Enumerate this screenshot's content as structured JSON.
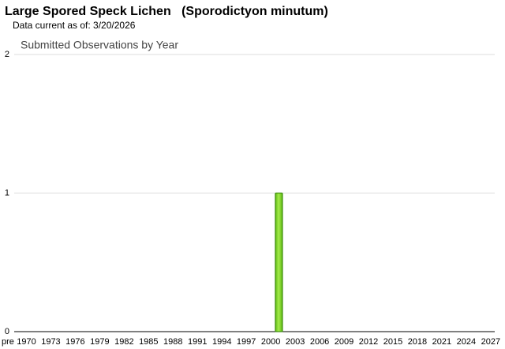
{
  "page_title": "Large Spored Speck Lichen   (Sporodictyon minutum)",
  "data_note": "Data current as of: 3/20/2026",
  "chart_data": {
    "type": "bar",
    "title": "Submitted Observations by Year",
    "categories": [
      "pre",
      "1970",
      null,
      null,
      "1973",
      null,
      null,
      "1976",
      null,
      null,
      "1979",
      null,
      null,
      "1982",
      null,
      null,
      "1985",
      null,
      null,
      "1988",
      null,
      null,
      "1991",
      null,
      null,
      "1994",
      null,
      null,
      "1997",
      null,
      null,
      "2000",
      null,
      null,
      "2003",
      null,
      null,
      "2006",
      null,
      null,
      "2009",
      null,
      null,
      "2012",
      null,
      null,
      "2015",
      null,
      null,
      "2018",
      null,
      null,
      "2021",
      null,
      null,
      "2024",
      null,
      null,
      "2027"
    ],
    "values": [
      0,
      0,
      0,
      0,
      0,
      0,
      0,
      0,
      0,
      0,
      0,
      0,
      0,
      0,
      0,
      0,
      0,
      0,
      0,
      0,
      0,
      0,
      0,
      0,
      0,
      0,
      0,
      0,
      0,
      0,
      0,
      0,
      1,
      0,
      0,
      0,
      0,
      0,
      0,
      0,
      0,
      0,
      0,
      0,
      0,
      0,
      0,
      0,
      0,
      0,
      0,
      0,
      0,
      0,
      0,
      0,
      0,
      0,
      0
    ],
    "color": "#7ed321",
    "ylim": [
      0,
      2
    ],
    "yticks": [
      0,
      1,
      2
    ],
    "grid": true
  }
}
